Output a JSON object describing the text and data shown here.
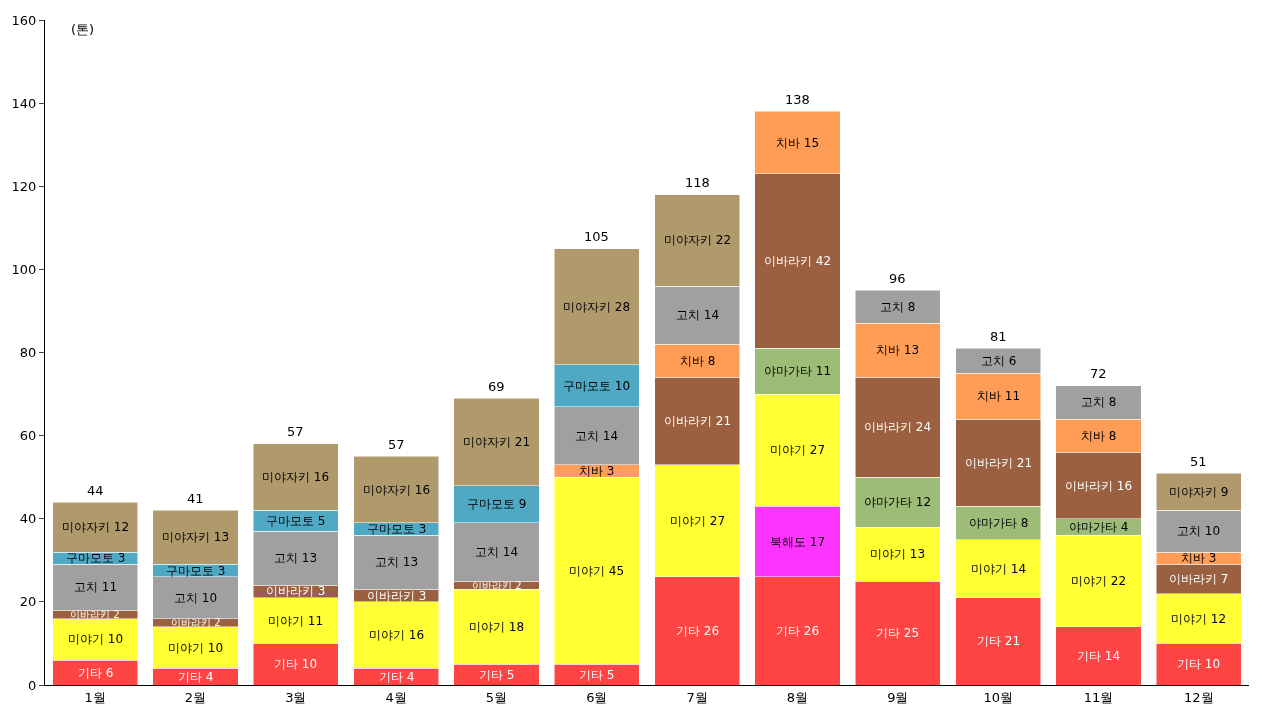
{
  "chart_data": {
    "type": "bar",
    "stacked": true,
    "categories": [
      "1월",
      "2월",
      "3월",
      "4월",
      "5월",
      "6월",
      "7월",
      "8월",
      "9월",
      "10월",
      "11월",
      "12월"
    ],
    "series": [
      {
        "color": "#ff4444",
        "values": [
          6,
          4,
          10,
          4,
          5,
          5,
          26,
          26,
          25,
          21,
          14,
          10
        ],
        "value_labels": [
          "기타 6",
          "기타 4",
          "기타 10",
          "기타 4",
          "기타 5",
          "기타 5",
          "기타 26",
          "기타 26",
          "기타 25",
          "기타 21",
          "기타 14",
          "기타 10"
        ]
      },
      {
        "color": "#ff33ff",
        "values": [
          null,
          null,
          null,
          null,
          null,
          null,
          null,
          17,
          null,
          null,
          null,
          null
        ],
        "value_labels": [
          null,
          null,
          null,
          null,
          null,
          null,
          null,
          "북해도 17",
          null,
          null,
          null,
          null
        ]
      },
      {
        "color": "#ffff33",
        "values": [
          10,
          10,
          11,
          16,
          18,
          45,
          27,
          27,
          13,
          14,
          22,
          12
        ],
        "value_labels": [
          "미야기 10",
          "미야기 10",
          "미야기 11",
          "미야기 16",
          "미야기 18",
          "미야기 45",
          "미야기 27",
          "미야기 27",
          "미야기 13",
          "미야기 14",
          "미야기 22",
          "미야기 12"
        ]
      },
      {
        "color": "#9cbc78",
        "values": [
          null,
          null,
          null,
          null,
          null,
          null,
          null,
          11,
          12,
          8,
          4,
          null
        ],
        "value_labels": [
          null,
          null,
          null,
          null,
          null,
          null,
          null,
          "야마가타 11",
          "야마가타 12",
          "야마가타 8",
          "야마가타 4",
          null
        ]
      },
      {
        "color": "#9a6040",
        "values": [
          2,
          2,
          3,
          3,
          2,
          null,
          21,
          42,
          24,
          21,
          16,
          7
        ],
        "value_labels": [
          "이바라키 2",
          "이바라키 2",
          "이바라키 3",
          "이바라키 3",
          "이바라키 2",
          null,
          "이바라키 21",
          "이바라키 42",
          "이바라키 24",
          "이바라키 21",
          "이바라키 16",
          "이바라키 7"
        ]
      },
      {
        "color": "#ff9c55",
        "values": [
          null,
          null,
          null,
          null,
          null,
          3,
          8,
          15,
          13,
          11,
          8,
          3
        ],
        "value_labels": [
          null,
          null,
          null,
          null,
          null,
          "치바 3",
          "치바 8",
          "치바 15",
          "치바 13",
          "치바 11",
          "치바 8",
          "치바 3"
        ]
      },
      {
        "color": "#a0a0a0",
        "values": [
          11,
          10,
          13,
          13,
          14,
          14,
          14,
          null,
          8,
          6,
          8,
          10
        ],
        "value_labels": [
          "고치 11",
          "고치 10",
          "고치 13",
          "고치 13",
          "고치 14",
          "고치 14",
          "고치 14",
          null,
          "고치 8",
          "고치 6",
          "고치 8",
          "고치 10"
        ]
      },
      {
        "color": "#4fa8c4",
        "values": [
          3,
          3,
          5,
          3,
          9,
          10,
          null,
          null,
          null,
          null,
          null,
          null
        ],
        "value_labels": [
          "구마모토 3",
          "구마모토 3",
          "구마모토 5",
          "구마모토 3",
          "구마모토 9",
          "구마모토 10",
          null,
          null,
          null,
          null,
          null,
          null
        ]
      },
      {
        "color": "#b09a6c",
        "values": [
          12,
          13,
          16,
          16,
          21,
          28,
          22,
          null,
          null,
          null,
          null,
          9
        ],
        "value_labels": [
          "미야자키 12",
          "미야자키 13",
          "미야자키 16",
          "미야자키 16",
          "미야자키 21",
          "미야자키 28",
          "미야자키 22",
          null,
          null,
          null,
          null,
          "미야자키 9"
        ]
      }
    ],
    "totals": [
      "44",
      "41",
      "57",
      "57",
      "69",
      "105",
      "118",
      "138",
      "96",
      "81",
      "72",
      "51"
    ],
    "ylim": [
      0,
      160
    ],
    "yticks": [
      0,
      20,
      40,
      60,
      80,
      100,
      120,
      140,
      160
    ],
    "annotations": [
      "(톤)"
    ]
  }
}
